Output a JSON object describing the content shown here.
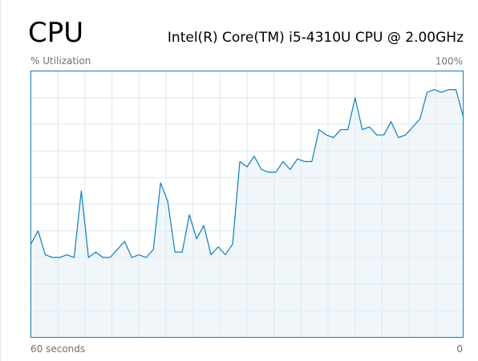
{
  "chart_data": {
    "type": "line",
    "title": "CPU",
    "subtitle": "Intel(R) Core(TM) i5-4310U CPU @ 2.00GHz",
    "y_label": "% Utilization",
    "x": [
      60,
      59,
      58,
      57,
      56,
      55,
      54,
      53,
      52,
      51,
      50,
      49,
      48,
      47,
      46,
      45,
      44,
      43,
      42,
      41,
      40,
      39,
      38,
      37,
      36,
      35,
      34,
      33,
      32,
      31,
      30,
      29,
      28,
      27,
      26,
      25,
      24,
      23,
      22,
      21,
      20,
      19,
      18,
      17,
      16,
      15,
      14,
      13,
      12,
      11,
      10,
      9,
      8,
      7,
      6,
      5,
      4,
      3,
      2,
      1,
      0
    ],
    "series": [
      {
        "name": "CPU",
        "color": "#117dbb",
        "fill": "#f1f6fa",
        "values": [
          35,
          40,
          31,
          30,
          30,
          31,
          30,
          55,
          30,
          32,
          30,
          30,
          33,
          36,
          30,
          31,
          30,
          33,
          58,
          51,
          32,
          32,
          46,
          37,
          42,
          31,
          34,
          31,
          35,
          66,
          64,
          68,
          63,
          62,
          62,
          66,
          63,
          67,
          66,
          66,
          78,
          76,
          75,
          78,
          78,
          90,
          78,
          79,
          76,
          76,
          81,
          75,
          76,
          79,
          82,
          92,
          93,
          92,
          93,
          93,
          83
        ]
      }
    ],
    "xlim": [
      60,
      0
    ],
    "xticks": [
      {
        "value": 60,
        "label": "60 seconds"
      },
      0
    ],
    "ylim": [
      0,
      100
    ],
    "yticks": [
      {
        "value": 100,
        "label": "100%"
      }
    ],
    "grid": {
      "rows": 10,
      "cols": 16,
      "color": "#d9eaf4"
    }
  }
}
